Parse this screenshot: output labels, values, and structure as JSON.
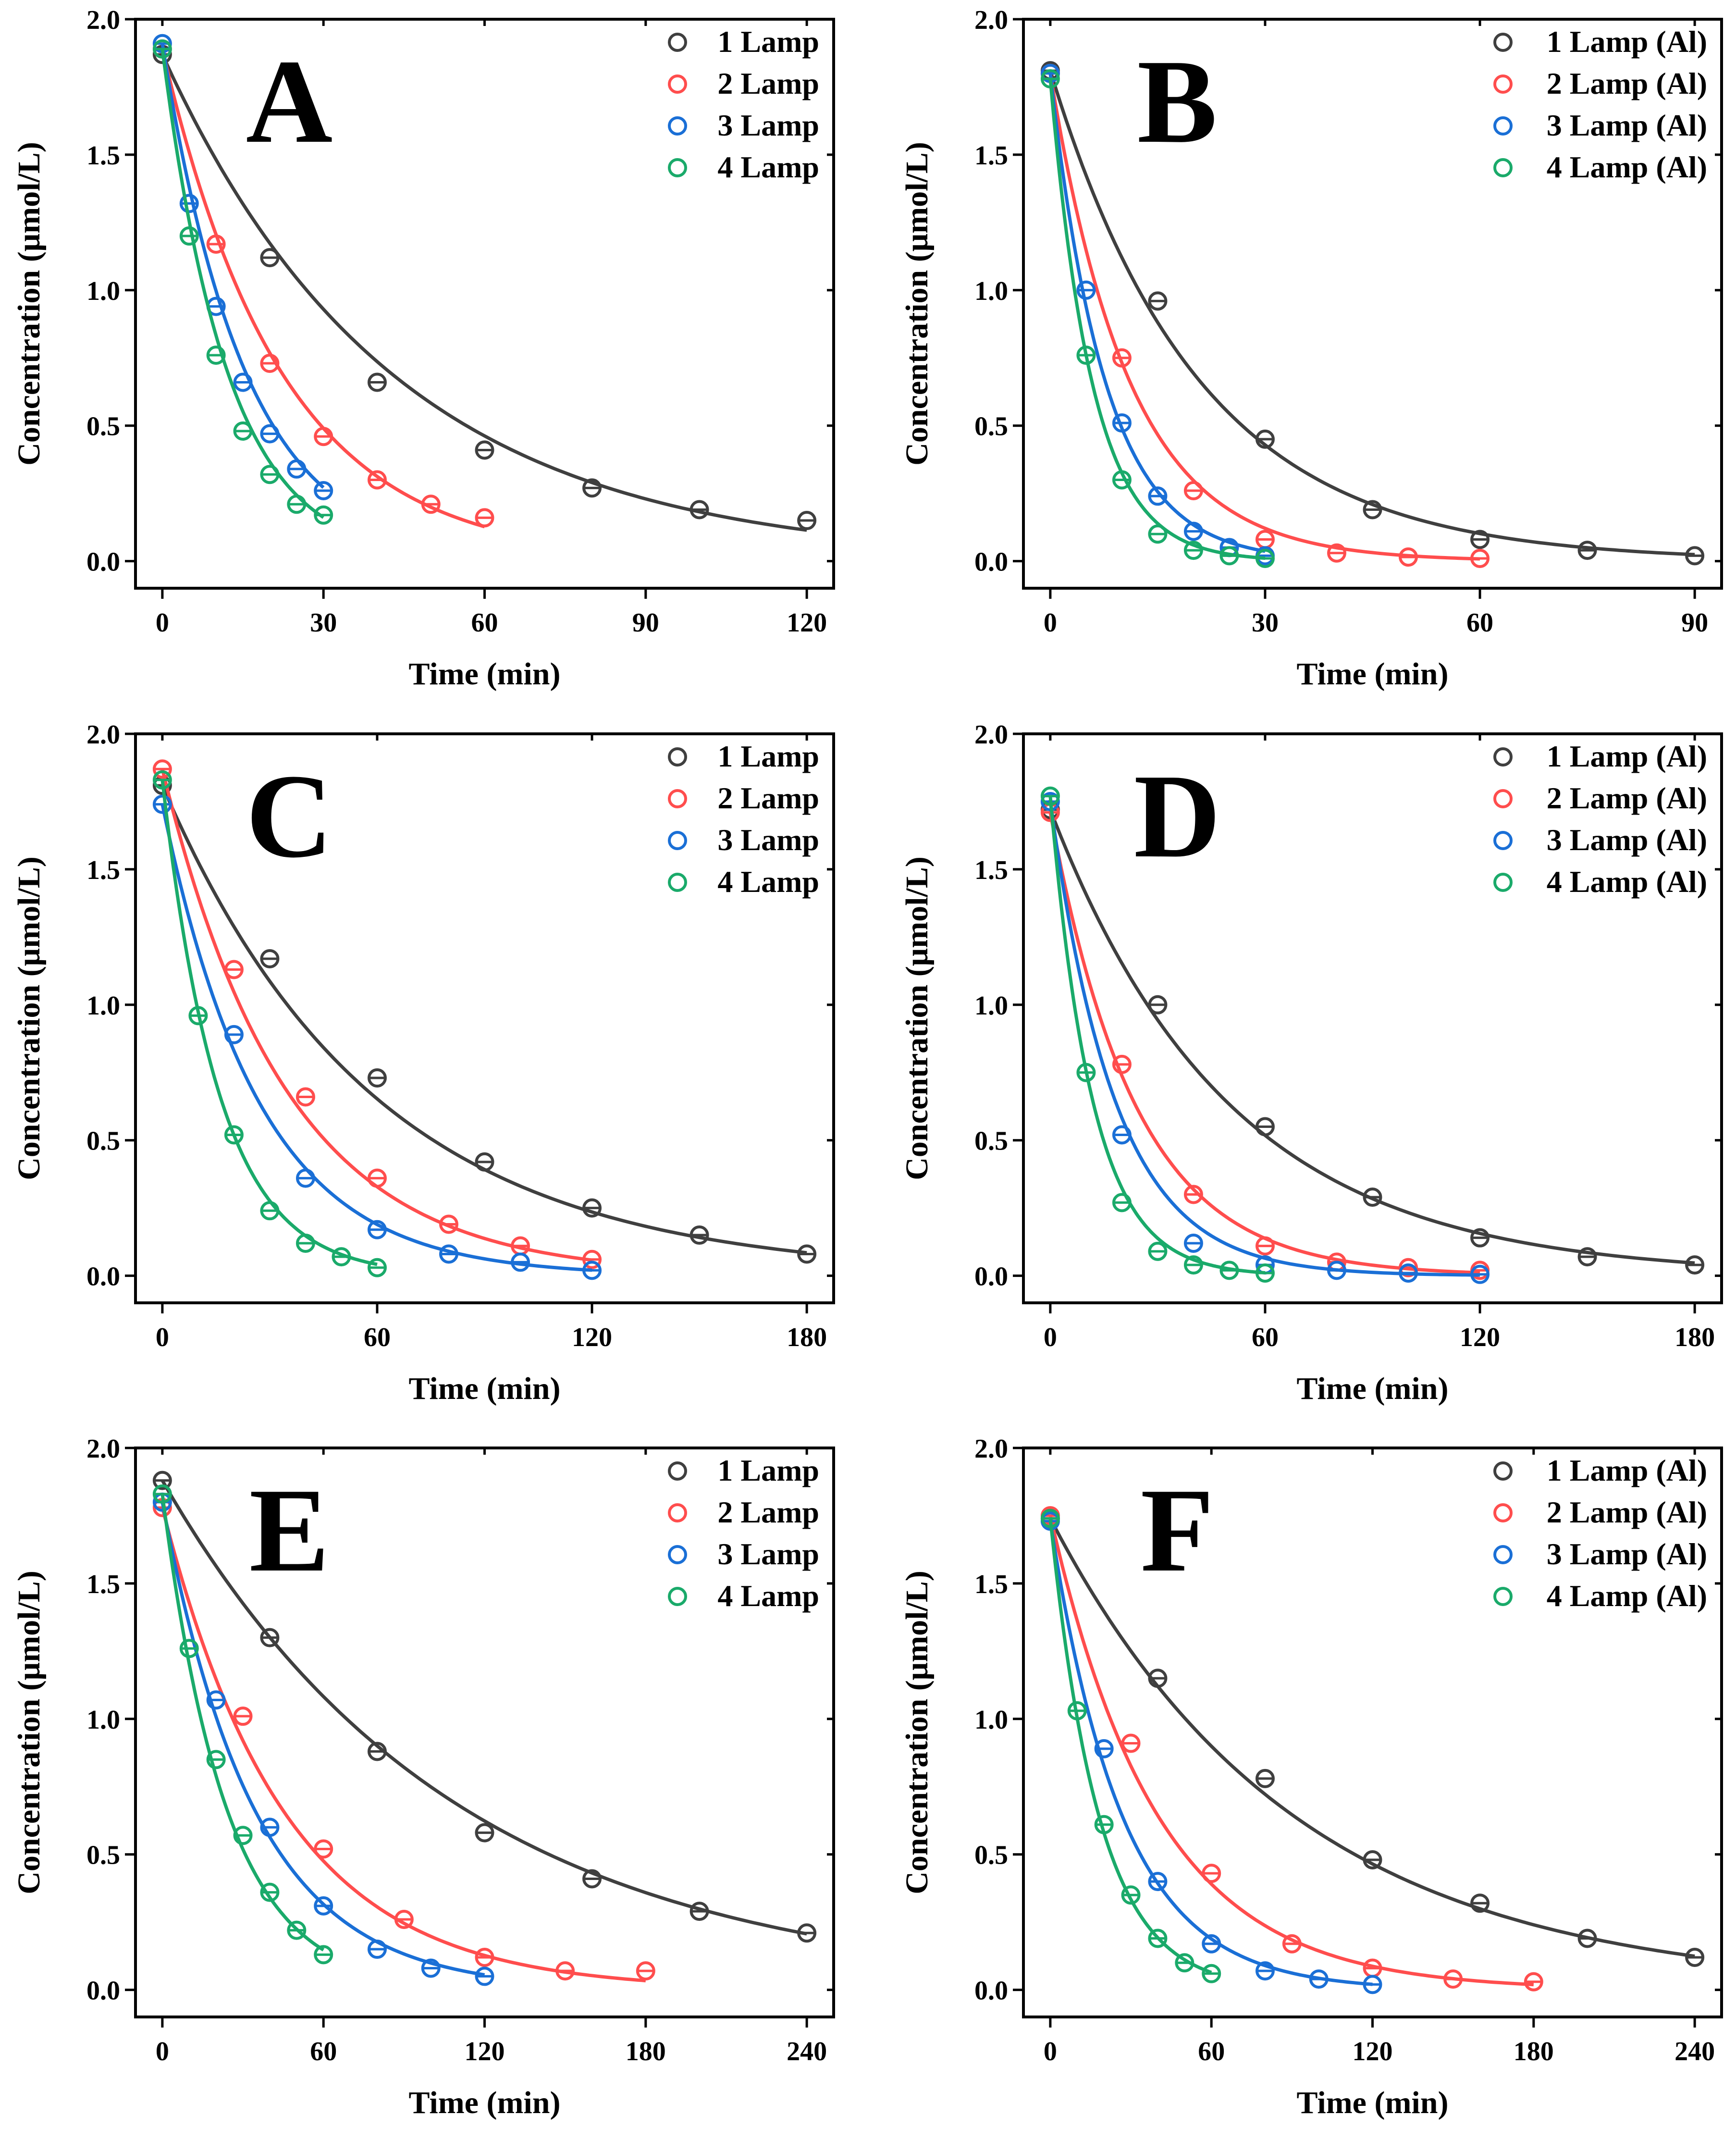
{
  "figure": {
    "common": {
      "xlabel": "Time (min)",
      "ylabel": "Concentration (μmol/L)",
      "ylim": [
        0,
        2
      ],
      "yticks": [
        "0.0",
        "0.5",
        "1.0",
        "1.5",
        "2.0"
      ]
    },
    "colors": {
      "1": "#3f3f3f",
      "2": "#ff4d4d",
      "3": "#1a6fd6",
      "4": "#1aaa6a"
    }
  },
  "chart_data": [
    {
      "type": "scatter",
      "panel": "A",
      "xlabel": "Time (min)",
      "ylabel": "Concentration (μmol/L)",
      "xlim": [
        -5,
        125
      ],
      "ylim": [
        -0.1,
        2.0
      ],
      "xticks": [
        "0",
        "30",
        "60",
        "90",
        "120"
      ],
      "series": [
        {
          "name": "1 Lamp",
          "x": [
            0,
            20,
            40,
            60,
            80,
            100,
            120
          ],
          "values": [
            1.87,
            1.12,
            0.66,
            0.41,
            0.27,
            0.19,
            0.15
          ],
          "fit_k": 0.0233
        },
        {
          "name": "2 Lamp",
          "x": [
            0,
            10,
            20,
            30,
            40,
            50,
            60
          ],
          "values": [
            1.89,
            1.17,
            0.73,
            0.46,
            0.3,
            0.21,
            0.16
          ],
          "fit_k": 0.045
        },
        {
          "name": "3 Lamp",
          "x": [
            0,
            5,
            10,
            15,
            20,
            25,
            30
          ],
          "values": [
            1.91,
            1.32,
            0.94,
            0.66,
            0.47,
            0.34,
            0.26
          ],
          "fit_k": 0.065
        },
        {
          "name": "4 Lamp",
          "x": [
            0,
            5,
            10,
            15,
            20,
            25,
            30
          ],
          "values": [
            1.89,
            1.2,
            0.76,
            0.48,
            0.32,
            0.21,
            0.17
          ],
          "fit_k": 0.082
        }
      ]
    },
    {
      "type": "scatter",
      "panel": "B",
      "xlabel": "Time (min)",
      "ylabel": "Concentration (μmol/L)",
      "xlim": [
        -3.75,
        93.75
      ],
      "ylim": [
        -0.1,
        2.0
      ],
      "xticks": [
        "0",
        "30",
        "60",
        "90"
      ],
      "series": [
        {
          "name": "1 Lamp (Al)",
          "x": [
            0,
            15,
            30,
            45,
            60,
            75,
            90
          ],
          "values": [
            1.81,
            0.96,
            0.45,
            0.19,
            0.08,
            0.04,
            0.02
          ],
          "fit_k": 0.048
        },
        {
          "name": "2 Lamp (Al)",
          "x": [
            0,
            10,
            20,
            30,
            40,
            50,
            60
          ],
          "values": [
            1.8,
            0.75,
            0.26,
            0.08,
            0.03,
            0.015,
            0.01
          ],
          "fit_k": 0.09
        },
        {
          "name": "3 Lamp (Al)",
          "x": [
            0,
            5,
            10,
            15,
            20,
            25,
            30
          ],
          "values": [
            1.8,
            1.0,
            0.51,
            0.24,
            0.11,
            0.05,
            0.02
          ],
          "fit_k": 0.13
        },
        {
          "name": "4 Lamp (Al)",
          "x": [
            0,
            5,
            10,
            15,
            20,
            25,
            30
          ],
          "values": [
            1.78,
            0.76,
            0.3,
            0.1,
            0.04,
            0.02,
            0.01
          ],
          "fit_k": 0.17
        }
      ]
    },
    {
      "type": "scatter",
      "panel": "C",
      "xlabel": "Time (min)",
      "ylabel": "Concentration (μmol/L)",
      "xlim": [
        -7.5,
        187.5
      ],
      "ylim": [
        -0.1,
        2.0
      ],
      "xticks": [
        "0",
        "60",
        "120",
        "180"
      ],
      "series": [
        {
          "name": "1 Lamp",
          "x": [
            0,
            30,
            60,
            90,
            120,
            150,
            180
          ],
          "values": [
            1.81,
            1.17,
            0.73,
            0.42,
            0.25,
            0.15,
            0.08
          ],
          "fit_k": 0.017
        },
        {
          "name": "2 Lamp",
          "x": [
            0,
            20,
            40,
            60,
            80,
            100,
            120
          ],
          "values": [
            1.87,
            1.13,
            0.66,
            0.36,
            0.19,
            0.11,
            0.06
          ],
          "fit_k": 0.029
        },
        {
          "name": "3 Lamp",
          "x": [
            0,
            20,
            40,
            60,
            80,
            100,
            120
          ],
          "values": [
            1.74,
            0.89,
            0.36,
            0.17,
            0.08,
            0.05,
            0.02
          ],
          "fit_k": 0.037
        },
        {
          "name": "4 Lamp",
          "x": [
            0,
            10,
            20,
            30,
            40,
            50,
            60
          ],
          "values": [
            1.83,
            0.96,
            0.52,
            0.24,
            0.12,
            0.07,
            0.03
          ],
          "fit_k": 0.063
        }
      ]
    },
    {
      "type": "scatter",
      "panel": "D",
      "xlabel": "Time (min)",
      "ylabel": "Concentration (μmol/L)",
      "xlim": [
        -7.5,
        187.5
      ],
      "ylim": [
        -0.1,
        2.0
      ],
      "xticks": [
        "0",
        "60",
        "120",
        "180"
      ],
      "series": [
        {
          "name": "1 Lamp (Al)",
          "x": [
            0,
            30,
            60,
            90,
            120,
            150,
            180
          ],
          "values": [
            1.72,
            1.0,
            0.55,
            0.29,
            0.14,
            0.07,
            0.04
          ],
          "fit_k": 0.02
        },
        {
          "name": "2 Lamp (Al)",
          "x": [
            0,
            20,
            40,
            60,
            80,
            100,
            120
          ],
          "values": [
            1.71,
            0.78,
            0.3,
            0.11,
            0.05,
            0.03,
            0.02
          ],
          "fit_k": 0.042
        },
        {
          "name": "3 Lamp (Al)",
          "x": [
            0,
            20,
            40,
            60,
            80,
            100,
            120
          ],
          "values": [
            1.75,
            0.52,
            0.12,
            0.04,
            0.02,
            0.01,
            0.005
          ],
          "fit_k": 0.055
        },
        {
          "name": "4 Lamp (Al)",
          "x": [
            0,
            10,
            20,
            30,
            40,
            50,
            60
          ],
          "values": [
            1.77,
            0.75,
            0.27,
            0.09,
            0.04,
            0.02,
            0.01
          ],
          "fit_k": 0.085
        }
      ]
    },
    {
      "type": "scatter",
      "panel": "E",
      "xlabel": "Time (min)",
      "ylabel": "Concentration (μmol/L)",
      "xlim": [
        -10,
        250
      ],
      "ylim": [
        -0.1,
        2.0
      ],
      "xticks": [
        "0",
        "60",
        "120",
        "180",
        "240"
      ],
      "series": [
        {
          "name": "1 Lamp",
          "x": [
            0,
            40,
            80,
            120,
            160,
            200,
            240
          ],
          "values": [
            1.88,
            1.3,
            0.88,
            0.58,
            0.41,
            0.29,
            0.21
          ],
          "fit_k": 0.0092
        },
        {
          "name": "2 Lamp",
          "x": [
            0,
            30,
            60,
            90,
            120,
            150,
            180
          ],
          "values": [
            1.78,
            1.01,
            0.52,
            0.26,
            0.12,
            0.07,
            0.07
          ],
          "fit_k": 0.022
        },
        {
          "name": "3 Lamp",
          "x": [
            0,
            20,
            40,
            60,
            80,
            100,
            120
          ],
          "values": [
            1.8,
            1.07,
            0.6,
            0.31,
            0.15,
            0.08,
            0.05
          ],
          "fit_k": 0.029
        },
        {
          "name": "4 Lamp",
          "x": [
            0,
            10,
            20,
            30,
            40,
            50,
            60
          ],
          "values": [
            1.83,
            1.26,
            0.85,
            0.57,
            0.36,
            0.22,
            0.13
          ],
          "fit_k": 0.042
        }
      ]
    },
    {
      "type": "scatter",
      "panel": "F",
      "xlabel": "Time (min)",
      "ylabel": "Concentration (μmol/L)",
      "xlim": [
        -10,
        250
      ],
      "ylim": [
        -0.1,
        2.0
      ],
      "xticks": [
        "0",
        "60",
        "120",
        "180",
        "240"
      ],
      "series": [
        {
          "name": "1 Lamp (Al)",
          "x": [
            0,
            40,
            80,
            120,
            160,
            200,
            240
          ],
          "values": [
            1.74,
            1.15,
            0.78,
            0.48,
            0.32,
            0.19,
            0.12
          ],
          "fit_k": 0.011
        },
        {
          "name": "2 Lamp (Al)",
          "x": [
            0,
            30,
            60,
            90,
            120,
            150,
            180
          ],
          "values": [
            1.75,
            0.91,
            0.43,
            0.17,
            0.08,
            0.04,
            0.03
          ],
          "fit_k": 0.025
        },
        {
          "name": "3 Lamp (Al)",
          "x": [
            0,
            20,
            40,
            60,
            80,
            100,
            120
          ],
          "values": [
            1.73,
            0.89,
            0.4,
            0.17,
            0.07,
            0.04,
            0.02
          ],
          "fit_k": 0.037
        },
        {
          "name": "4 Lamp (Al)",
          "x": [
            0,
            10,
            20,
            30,
            40,
            50,
            60
          ],
          "values": [
            1.74,
            1.03,
            0.61,
            0.35,
            0.19,
            0.1,
            0.06
          ],
          "fit_k": 0.055
        }
      ]
    }
  ]
}
